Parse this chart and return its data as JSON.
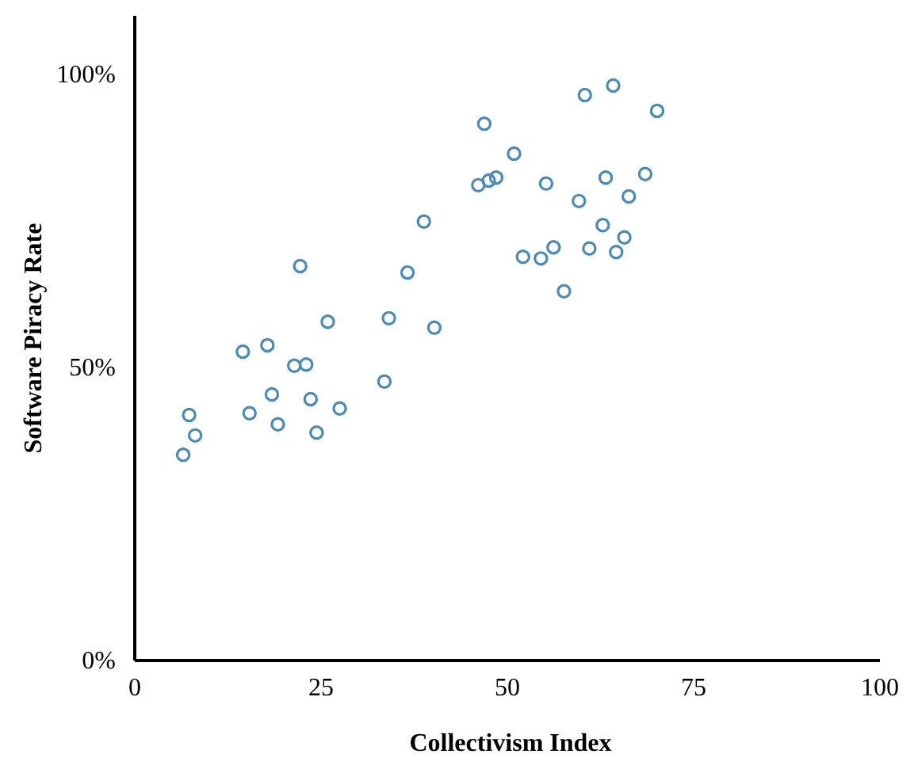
{
  "chart_data": {
    "type": "scatter",
    "xlabel": "Collectivism Index",
    "ylabel": "Software Piracy Rate",
    "xlim": [
      0,
      100
    ],
    "xticks": [
      0,
      25,
      50,
      75,
      100
    ],
    "ylim": [
      0,
      110
    ],
    "yticks": [
      {
        "value": 0,
        "label": "0%"
      },
      {
        "value": 50,
        "label": "50%"
      },
      {
        "value": 100,
        "label": "100%"
      }
    ],
    "marker": "circle",
    "grid": false,
    "series": [
      {
        "color": "#4a8ab5",
        "x": [
          46.9,
          46.1,
          47.5,
          48.5,
          38.8,
          22.2,
          36.6,
          25.9,
          34.1,
          40.2,
          14.5,
          17.8,
          21.4,
          23.0,
          33.5,
          18.4,
          23.6,
          27.5,
          7.3,
          15.4,
          19.2,
          24.4,
          8.1,
          6.5,
          60.4,
          64.2,
          70.1,
          50.9,
          55.2,
          63.2,
          68.5,
          59.6,
          66.3,
          62.8,
          65.7,
          52.1,
          54.5,
          56.2,
          61.0,
          64.6,
          57.6
        ],
        "values": [
          91.6,
          81.1,
          81.9,
          82.4,
          74.9,
          67.3,
          66.2,
          57.8,
          58.4,
          56.8,
          52.7,
          53.8,
          50.3,
          50.5,
          47.6,
          45.4,
          44.6,
          43.0,
          41.9,
          42.2,
          40.3,
          38.9,
          38.4,
          35.1,
          96.5,
          98.1,
          93.8,
          86.5,
          81.4,
          82.4,
          83.0,
          78.4,
          79.2,
          74.3,
          72.2,
          68.9,
          68.6,
          70.5,
          70.3,
          69.7,
          63.0
        ]
      }
    ]
  }
}
